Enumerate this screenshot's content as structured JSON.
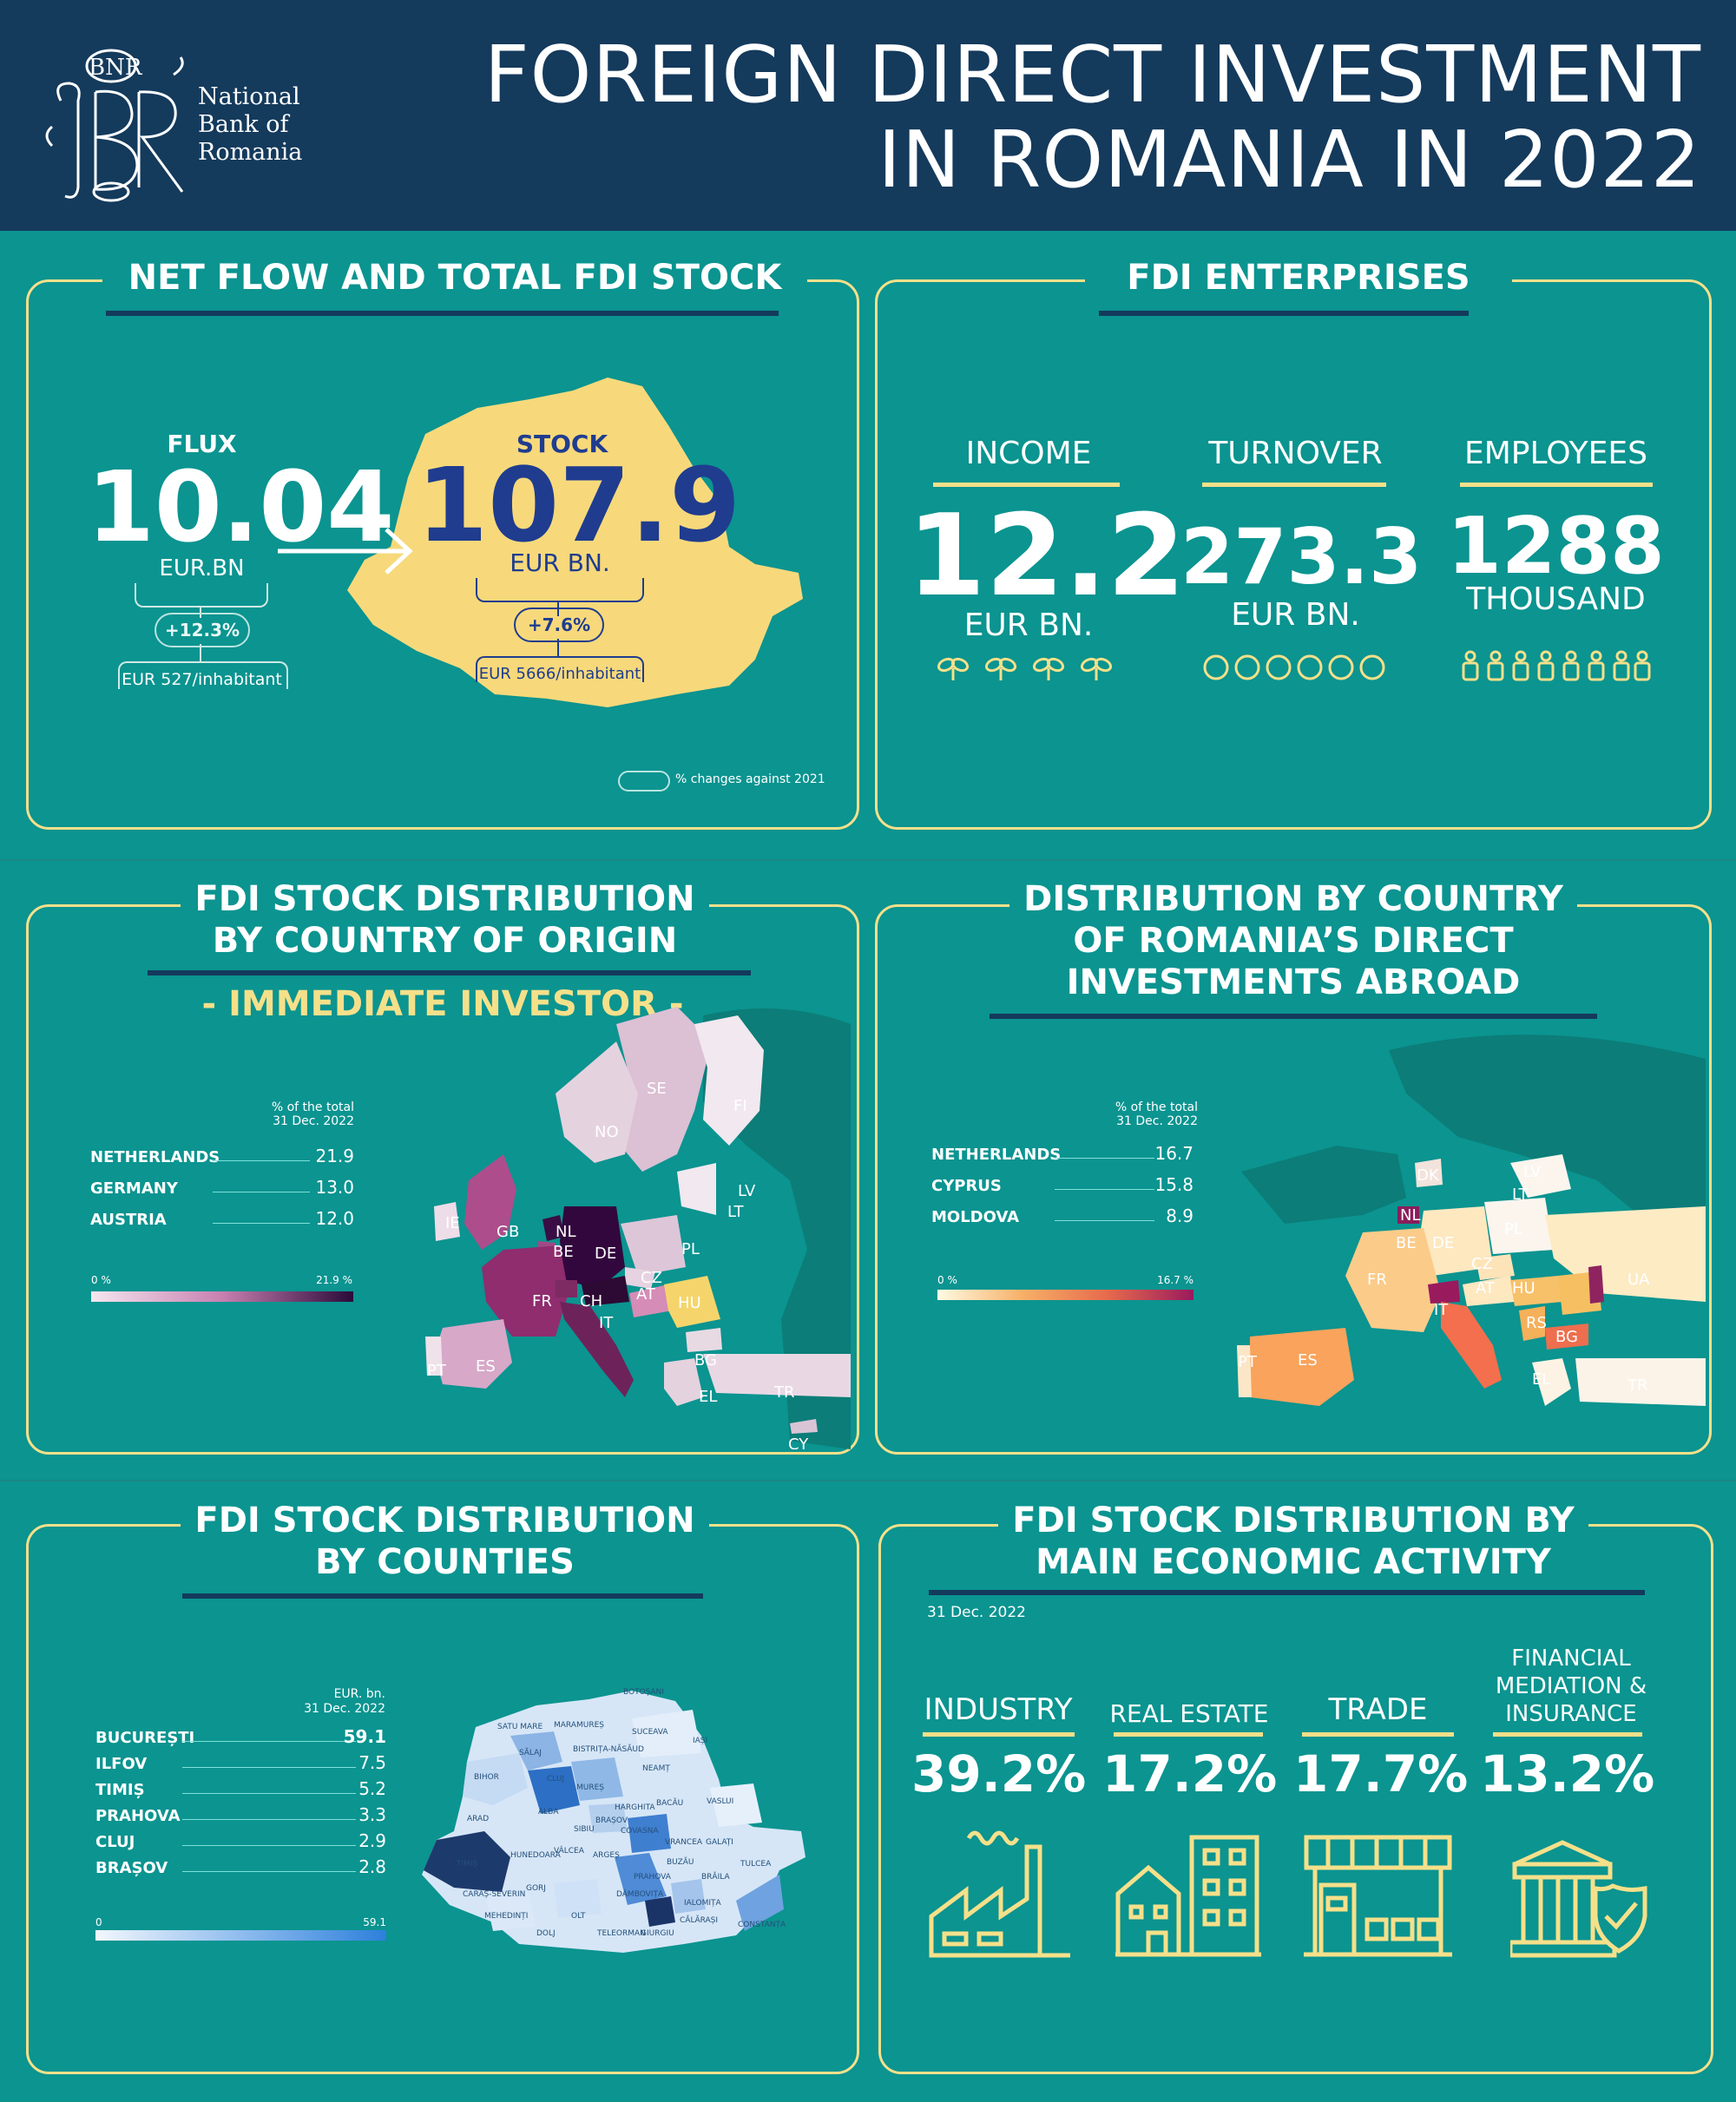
{
  "header": {
    "logo_lines": [
      "National",
      "Bank of",
      "Romania"
    ],
    "logo_monogram": "BNR",
    "title_line1": "FOREIGN DIRECT INVESTMENT",
    "title_line2": "IN ROMANIA IN 2022"
  },
  "net_flow": {
    "title": "NET FLOW AND TOTAL FDI STOCK",
    "flux_label": "FLUX",
    "flux_value": "10.04",
    "flux_unit": "EUR.BN",
    "flux_change": "+12.3%",
    "flux_per_inhabitant": "EUR 527/inhabitant",
    "stock_label": "STOCK",
    "stock_value": "107.9",
    "stock_unit": "EUR BN.",
    "stock_change": "+7.6%",
    "stock_per_inhabitant": "EUR 5666/inhabitant",
    "legend_text": "% changes against 2021"
  },
  "enterprises": {
    "title": "FDI ENTERPRISES",
    "items": [
      {
        "label": "INCOME",
        "value": "12.2",
        "unit": "EUR BN.",
        "icon": "money-plant-icon"
      },
      {
        "label": "TURNOVER",
        "value": "273.3",
        "unit": "EUR BN.",
        "icon": "coin-icon"
      },
      {
        "label": "EMPLOYEES",
        "value": "1288",
        "unit": "THOUSAND",
        "icon": "person-icon"
      }
    ]
  },
  "origin": {
    "title_line1": "FDI STOCK DISTRIBUTION",
    "title_line2": "BY COUNTRY OF ORIGIN",
    "subtitle": "- IMMEDIATE INVESTOR -",
    "legend_header_line1": "% of the total",
    "legend_header_line2": "31 Dec. 2022",
    "rows": [
      {
        "name": "NETHERLANDS",
        "value": "21.9"
      },
      {
        "name": "GERMANY",
        "value": "13.0"
      },
      {
        "name": "AUSTRIA",
        "value": "12.0"
      }
    ],
    "scale_min": "0 %",
    "scale_max": "21.9 %",
    "map_labels": [
      "SE",
      "FI",
      "NO",
      "LV",
      "LT",
      "IE",
      "GB",
      "NL",
      "BE",
      "DE",
      "PL",
      "CZ",
      "FR",
      "CH",
      "AT",
      "HU",
      "IT",
      "ES",
      "PT",
      "BG",
      "EL",
      "TR",
      "CY"
    ]
  },
  "abroad": {
    "title_line1": "DISTRIBUTION BY COUNTRY",
    "title_line2": "OF ROMANIA’S DIRECT",
    "title_line3": "INVESTMENTS ABROAD",
    "legend_header_line1": "% of the total",
    "legend_header_line2": "31 Dec. 2022",
    "rows": [
      {
        "name": "NETHERLANDS",
        "value": "16.7"
      },
      {
        "name": "CYPRUS",
        "value": "15.8"
      },
      {
        "name": "MOLDOVA",
        "value": "8.9"
      }
    ],
    "scale_min": "0 %",
    "scale_max": "16.7 %",
    "map_labels": [
      "LV",
      "LT",
      "DK",
      "NL",
      "PL",
      "DE",
      "BE",
      "UA",
      "CZ",
      "FR",
      "AT",
      "HU",
      "IT",
      "RS",
      "BG",
      "ES",
      "PT",
      "EL",
      "TR"
    ]
  },
  "counties": {
    "title_line1": "FDI STOCK DISTRIBUTION",
    "title_line2": "BY COUNTIES",
    "legend_header_line1": "EUR. bn.",
    "legend_header_line2": "31 Dec. 2022",
    "rows": [
      {
        "name": "BUCUREȘTI",
        "value": "59.1"
      },
      {
        "name": "ILFOV",
        "value": "7.5"
      },
      {
        "name": "TIMIȘ",
        "value": "5.2"
      },
      {
        "name": "PRAHOVA",
        "value": "3.3"
      },
      {
        "name": "CLUJ",
        "value": "2.9"
      },
      {
        "name": "BRAȘOV",
        "value": "2.8"
      }
    ],
    "scale_min": "0",
    "scale_max": "59.1",
    "map_labels": [
      "BOTOȘANI",
      "SATU MARE",
      "MARAMUREȘ",
      "SUCEAVA",
      "BISTRIȚA-NĂSĂUD",
      "IAȘI",
      "SĂLAJ",
      "BIHOR",
      "NEAMȚ",
      "CLUJ",
      "MUREȘ",
      "ARAD",
      "ALBA",
      "HARGHITA",
      "BACĂU",
      "VASLUI",
      "SIBIU",
      "COVASNA",
      "TIMIȘ",
      "HUNEDOARA",
      "BRAȘOV",
      "VRANCEA",
      "GALAȚI",
      "VÂLCEA",
      "ARGEȘ",
      "BUZĂU",
      "CARAȘ-SEVERIN",
      "PRAHOVA",
      "BRĂILA",
      "TULCEA",
      "GORJ",
      "DÂMBOVIȚA",
      "MEHEDINȚI",
      "IALOMIȚA",
      "DOLJ",
      "OLT",
      "TELEORMAN",
      "CĂLĂRAȘI",
      "GIURGIU",
      "CONSTANȚA"
    ]
  },
  "activity": {
    "title_line1": "FDI STOCK DISTRIBUTION BY",
    "title_line2": "MAIN ECONOMIC ACTIVITY",
    "date": "31 Dec. 2022",
    "items": [
      {
        "label": "INDUSTRY",
        "value": "39.2%",
        "icon": "factory-icon"
      },
      {
        "label": "REAL ESTATE",
        "value": "17.2%",
        "icon": "buildings-icon"
      },
      {
        "label": "TRADE",
        "value": "17.7%",
        "icon": "shop-icon"
      },
      {
        "label_lines": [
          "FINANCIAL",
          "MEDIATION &",
          "INSURANCE"
        ],
        "value": "13.2%",
        "icon": "bank-shield-icon"
      }
    ]
  },
  "chart_data": [
    {
      "type": "table",
      "title": "NET FLOW AND TOTAL FDI STOCK",
      "flux_eur_bn": 10.04,
      "flux_change_pct": 12.3,
      "flux_eur_per_inhabitant": 527,
      "stock_eur_bn": 107.9,
      "stock_change_pct": 7.6,
      "stock_eur_per_inhabitant": 5666
    },
    {
      "type": "table",
      "title": "FDI ENTERPRISES",
      "categories": [
        "INCOME",
        "TURNOVER",
        "EMPLOYEES"
      ],
      "values": [
        12.2,
        273.3,
        1288
      ],
      "units": [
        "EUR BN.",
        "EUR BN.",
        "THOUSAND"
      ]
    },
    {
      "type": "bar",
      "title": "FDI STOCK DISTRIBUTION BY COUNTRY OF ORIGIN",
      "categories": [
        "NETHERLANDS",
        "GERMANY",
        "AUSTRIA"
      ],
      "values": [
        21.9,
        13.0,
        12.0
      ],
      "ylabel": "% of the total",
      "ylim": [
        0,
        21.9
      ]
    },
    {
      "type": "bar",
      "title": "DISTRIBUTION BY COUNTRY OF ROMANIA’S DIRECT INVESTMENTS ABROAD",
      "categories": [
        "NETHERLANDS",
        "CYPRUS",
        "MOLDOVA"
      ],
      "values": [
        16.7,
        15.8,
        8.9
      ],
      "ylabel": "% of the total",
      "ylim": [
        0,
        16.7
      ]
    },
    {
      "type": "bar",
      "title": "FDI STOCK DISTRIBUTION BY COUNTIES",
      "categories": [
        "BUCUREȘTI",
        "ILFOV",
        "TIMIȘ",
        "PRAHOVA",
        "CLUJ",
        "BRAȘOV"
      ],
      "values": [
        59.1,
        7.5,
        5.2,
        3.3,
        2.9,
        2.8
      ],
      "ylabel": "EUR. bn.",
      "ylim": [
        0,
        59.1
      ]
    },
    {
      "type": "table",
      "title": "FDI STOCK DISTRIBUTION BY MAIN ECONOMIC ACTIVITY",
      "categories": [
        "INDUSTRY",
        "REAL ESTATE",
        "TRADE",
        "FINANCIAL MEDIATION & INSURANCE"
      ],
      "values": [
        39.2,
        17.2,
        17.7,
        13.2
      ],
      "unit": "%"
    }
  ],
  "colors": {
    "header_bg": "#143a5c",
    "page_bg": "#0b9490",
    "accent_gold": "#f5e08a",
    "stock_blue": "#1f3c8f",
    "origin_scale": [
      "#f4e6ef",
      "#2a0a3a"
    ],
    "abroad_scale": [
      "#fffbe3",
      "#9a1a5e"
    ],
    "counties_scale": [
      "#f2f7fd",
      "#163a6e"
    ]
  }
}
